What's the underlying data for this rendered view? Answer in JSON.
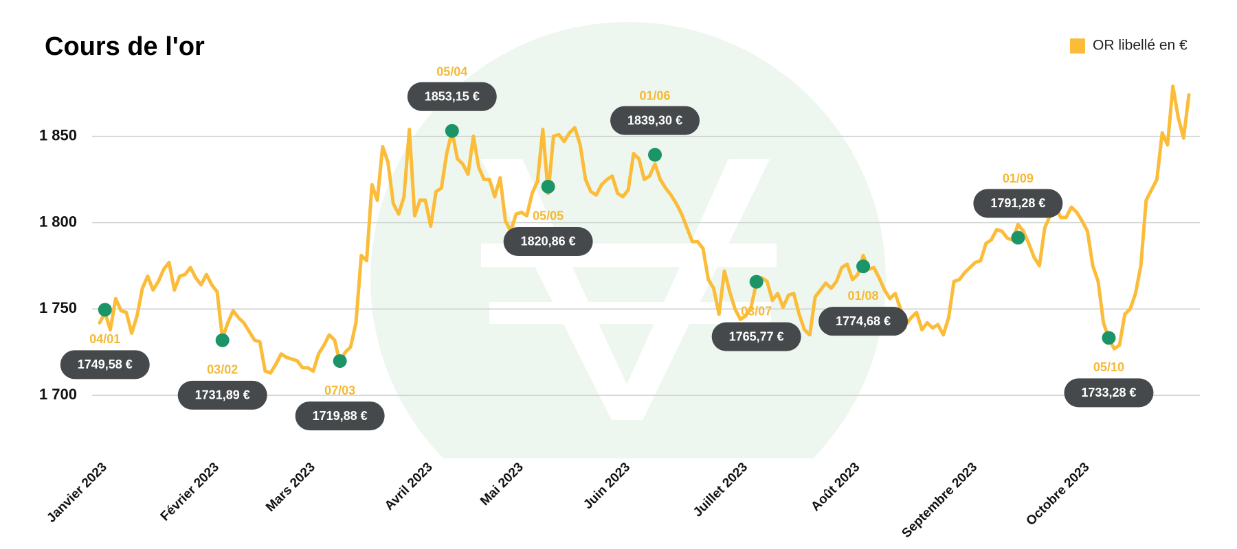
{
  "chart_data": {
    "type": "line",
    "title": "Cours de l'or",
    "legend": "top-right",
    "grid": true,
    "series": [
      {
        "name": "OR libellé en €",
        "color": "#fbbc3a",
        "values": [
          1742,
          1748,
          1738,
          1756,
          1749,
          1748,
          1736,
          1746,
          1762,
          1769,
          1761,
          1766,
          1773,
          1777,
          1761,
          1769,
          1770,
          1774,
          1768,
          1764,
          1770,
          1764,
          1760,
          1733,
          1742,
          1749,
          1745,
          1742,
          1737,
          1732,
          1731,
          1714,
          1713,
          1718,
          1724,
          1722,
          1721,
          1720,
          1716,
          1716,
          1714,
          1724,
          1729,
          1735,
          1732,
          1719,
          1725,
          1728,
          1742,
          1781,
          1778,
          1822,
          1813,
          1844,
          1835,
          1811,
          1805,
          1815,
          1854,
          1804,
          1813,
          1813,
          1798,
          1818,
          1820,
          1840,
          1853,
          1837,
          1834,
          1828,
          1850,
          1832,
          1825,
          1825,
          1815,
          1826,
          1801,
          1795,
          1805,
          1806,
          1804,
          1817,
          1824,
          1854,
          1817,
          1850,
          1851,
          1847,
          1852,
          1855,
          1845,
          1825,
          1818,
          1816,
          1822,
          1825,
          1827,
          1817,
          1815,
          1819,
          1840,
          1837,
          1825,
          1827,
          1834,
          1825,
          1820,
          1816,
          1811,
          1805,
          1797,
          1789,
          1789,
          1785,
          1767,
          1762,
          1747,
          1772,
          1760,
          1750,
          1744,
          1746,
          1751,
          1765,
          1768,
          1766,
          1755,
          1759,
          1751,
          1758,
          1759,
          1747,
          1738,
          1735,
          1757,
          1761,
          1765,
          1762,
          1766,
          1774,
          1776,
          1767,
          1770,
          1781,
          1773,
          1774,
          1768,
          1761,
          1756,
          1759,
          1750,
          1741,
          1745,
          1748,
          1738,
          1742,
          1739,
          1741,
          1735,
          1745,
          1766,
          1767,
          1771,
          1774,
          1777,
          1778,
          1788,
          1790,
          1796,
          1795,
          1791,
          1790,
          1799,
          1795,
          1788,
          1780,
          1775,
          1797,
          1804,
          1809,
          1803,
          1803,
          1809,
          1806,
          1801,
          1795,
          1775,
          1766,
          1742,
          1733,
          1727,
          1729,
          1747,
          1750,
          1759,
          1775,
          1813,
          1819,
          1825,
          1852,
          1845,
          1879,
          1861,
          1849,
          1874
        ]
      }
    ],
    "xlim": [
      0,
      204
    ],
    "xticks": [
      {
        "value": 1,
        "label": "Janvier 2023"
      },
      {
        "value": 22,
        "label": "Février 2023"
      },
      {
        "value": 40,
        "label": "Mars 2023"
      },
      {
        "value": 62,
        "label": "Avril 2023"
      },
      {
        "value": 79,
        "label": "Mai 2023"
      },
      {
        "value": 99,
        "label": "Juin 2023"
      },
      {
        "value": 121,
        "label": "Juillet 2023"
      },
      {
        "value": 142,
        "label": "Août 2023"
      },
      {
        "value": 164,
        "label": "Septembre 2023"
      },
      {
        "value": 185,
        "label": "Octobre 2023"
      }
    ],
    "ylim": [
      1675,
      1890
    ],
    "yticks": [
      {
        "value": 1700,
        "label": "1 700"
      },
      {
        "value": 1750,
        "label": "1 750"
      },
      {
        "value": 1800,
        "label": "1 800"
      },
      {
        "value": 1850,
        "label": "1 850"
      }
    ],
    "annotations": [
      {
        "x": 1,
        "y": 1749.58,
        "date": "04/01",
        "label": "1749,58 €",
        "position": "below"
      },
      {
        "x": 23,
        "y": 1731.89,
        "date": "03/02",
        "label": "1731,89 €",
        "position": "below"
      },
      {
        "x": 45,
        "y": 1719.88,
        "date": "07/03",
        "label": "1719,88 €",
        "position": "below"
      },
      {
        "x": 66,
        "y": 1853.15,
        "date": "05/04",
        "label": "1853,15 €",
        "position": "above"
      },
      {
        "x": 84,
        "y": 1820.86,
        "date": "05/05",
        "label": "1820,86 €",
        "position": "below"
      },
      {
        "x": 104,
        "y": 1839.3,
        "date": "01/06",
        "label": "1839,30 €",
        "position": "above"
      },
      {
        "x": 123,
        "y": 1765.77,
        "date": "03/07",
        "label": "1765,77 €",
        "position": "below"
      },
      {
        "x": 143,
        "y": 1774.68,
        "date": "01/08",
        "label": "1774,68 €",
        "position": "below"
      },
      {
        "x": 172,
        "y": 1791.28,
        "date": "01/09",
        "label": "1791,28 €",
        "position": "above"
      },
      {
        "x": 189,
        "y": 1733.28,
        "date": "05/10",
        "label": "1733,28 €",
        "position": "below"
      }
    ]
  }
}
